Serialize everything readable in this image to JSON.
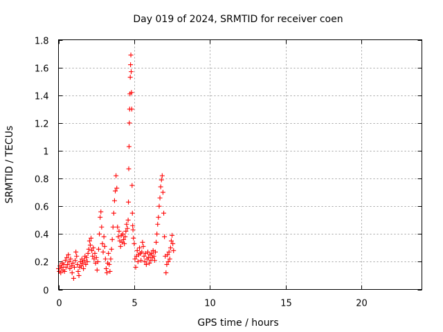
{
  "chart_data": {
    "type": "scatter",
    "title": "Day 019 of 2024, SRMTID for receiver coen",
    "xlabel": "GPS time / hours",
    "ylabel": "SRMTID / TECUs",
    "xlim": [
      0,
      24
    ],
    "ylim": [
      0,
      1.8
    ],
    "xticks": [
      0,
      5,
      10,
      15,
      20
    ],
    "xtick_labels": [
      "0",
      "5",
      "10",
      "15",
      "20"
    ],
    "yticks": [
      0,
      0.2,
      0.4,
      0.6,
      0.8,
      1,
      1.2,
      1.4,
      1.6,
      1.8
    ],
    "ytick_labels": [
      "0",
      "0.2",
      "0.4",
      "0.6",
      "0.8",
      "1",
      "1.2",
      "1.4",
      "1.6",
      "1.8"
    ],
    "grid": true,
    "marker": "+",
    "series_color": "#ff0000",
    "series": [
      {
        "name": "SRMTID",
        "points": [
          [
            0.0,
            0.15
          ],
          [
            0.05,
            0.13
          ],
          [
            0.1,
            0.17
          ],
          [
            0.15,
            0.12
          ],
          [
            0.2,
            0.16
          ],
          [
            0.25,
            0.19
          ],
          [
            0.3,
            0.14
          ],
          [
            0.35,
            0.18
          ],
          [
            0.4,
            0.13
          ],
          [
            0.45,
            0.21
          ],
          [
            0.5,
            0.16
          ],
          [
            0.55,
            0.23
          ],
          [
            0.6,
            0.18
          ],
          [
            0.65,
            0.25
          ],
          [
            0.7,
            0.2
          ],
          [
            0.75,
            0.15
          ],
          [
            0.8,
            0.22
          ],
          [
            0.85,
            0.17
          ],
          [
            0.9,
            0.12
          ],
          [
            0.95,
            0.19
          ],
          [
            1.0,
            0.08
          ],
          [
            1.05,
            0.16
          ],
          [
            1.1,
            0.21
          ],
          [
            1.15,
            0.27
          ],
          [
            1.2,
            0.24
          ],
          [
            1.25,
            0.18
          ],
          [
            1.3,
            0.13
          ],
          [
            1.35,
            0.1
          ],
          [
            1.4,
            0.16
          ],
          [
            1.45,
            0.2
          ],
          [
            1.5,
            0.17
          ],
          [
            1.55,
            0.22
          ],
          [
            1.6,
            0.19
          ],
          [
            1.65,
            0.15
          ],
          [
            1.7,
            0.21
          ],
          [
            1.75,
            0.24
          ],
          [
            1.8,
            0.18
          ],
          [
            1.85,
            0.23
          ],
          [
            1.9,
            0.2
          ],
          [
            1.95,
            0.26
          ],
          [
            2.0,
            0.29
          ],
          [
            2.05,
            0.35
          ],
          [
            2.1,
            0.32
          ],
          [
            2.15,
            0.37
          ],
          [
            2.2,
            0.28
          ],
          [
            2.25,
            0.24
          ],
          [
            2.3,
            0.3
          ],
          [
            2.35,
            0.22
          ],
          [
            2.4,
            0.26
          ],
          [
            2.45,
            0.19
          ],
          [
            2.5,
            0.23
          ],
          [
            2.55,
            0.14
          ],
          [
            2.6,
            0.2
          ],
          [
            2.65,
            0.29
          ],
          [
            2.7,
            0.4
          ],
          [
            2.75,
            0.52
          ],
          [
            2.8,
            0.56
          ],
          [
            2.85,
            0.45
          ],
          [
            2.9,
            0.33
          ],
          [
            2.95,
            0.27
          ],
          [
            3.0,
            0.38
          ],
          [
            3.05,
            0.31
          ],
          [
            3.1,
            0.22
          ],
          [
            3.15,
            0.15
          ],
          [
            3.2,
            0.12
          ],
          [
            3.25,
            0.19
          ],
          [
            3.3,
            0.26
          ],
          [
            3.35,
            0.18
          ],
          [
            3.4,
            0.13
          ],
          [
            3.45,
            0.22
          ],
          [
            3.5,
            0.29
          ],
          [
            3.55,
            0.36
          ],
          [
            3.6,
            0.45
          ],
          [
            3.65,
            0.55
          ],
          [
            3.7,
            0.64
          ],
          [
            3.75,
            0.71
          ],
          [
            3.8,
            0.82
          ],
          [
            3.85,
            0.73
          ],
          [
            3.9,
            0.45
          ],
          [
            3.95,
            0.38
          ],
          [
            4.0,
            0.42
          ],
          [
            4.05,
            0.35
          ],
          [
            4.1,
            0.31
          ],
          [
            4.15,
            0.39
          ],
          [
            4.2,
            0.34
          ],
          [
            4.25,
            0.4
          ],
          [
            4.3,
            0.36
          ],
          [
            4.35,
            0.33
          ],
          [
            4.4,
            0.38
          ],
          [
            4.45,
            0.42
          ],
          [
            4.5,
            0.47
          ],
          [
            4.55,
            0.44
          ],
          [
            4.6,
            0.5
          ],
          [
            4.62,
            0.63
          ],
          [
            4.64,
            0.87
          ],
          [
            4.66,
            1.03
          ],
          [
            4.68,
            1.2
          ],
          [
            4.7,
            1.3
          ],
          [
            4.72,
            1.41
          ],
          [
            4.74,
            1.53
          ],
          [
            4.76,
            1.62
          ],
          [
            4.78,
            1.69
          ],
          [
            4.8,
            1.57
          ],
          [
            4.82,
            1.42
          ],
          [
            4.84,
            1.3
          ],
          [
            4.86,
            0.75
          ],
          [
            4.88,
            0.55
          ],
          [
            4.9,
            0.46
          ],
          [
            4.92,
            0.43
          ],
          [
            4.95,
            0.37
          ],
          [
            5.0,
            0.33
          ],
          [
            5.05,
            0.22
          ],
          [
            5.1,
            0.16
          ],
          [
            5.15,
            0.24
          ],
          [
            5.2,
            0.28
          ],
          [
            5.25,
            0.2
          ],
          [
            5.3,
            0.25
          ],
          [
            5.35,
            0.3
          ],
          [
            5.4,
            0.26
          ],
          [
            5.45,
            0.21
          ],
          [
            5.5,
            0.27
          ],
          [
            5.55,
            0.34
          ],
          [
            5.6,
            0.31
          ],
          [
            5.65,
            0.24
          ],
          [
            5.7,
            0.2
          ],
          [
            5.75,
            0.26
          ],
          [
            5.8,
            0.18
          ],
          [
            5.85,
            0.22
          ],
          [
            5.9,
            0.27
          ],
          [
            5.95,
            0.23
          ],
          [
            6.0,
            0.19
          ],
          [
            6.05,
            0.25
          ],
          [
            6.1,
            0.21
          ],
          [
            6.15,
            0.26
          ],
          [
            6.2,
            0.23
          ],
          [
            6.25,
            0.28
          ],
          [
            6.3,
            0.24
          ],
          [
            6.35,
            0.21
          ],
          [
            6.4,
            0.27
          ],
          [
            6.45,
            0.34
          ],
          [
            6.5,
            0.4
          ],
          [
            6.55,
            0.47
          ],
          [
            6.6,
            0.52
          ],
          [
            6.65,
            0.6
          ],
          [
            6.7,
            0.66
          ],
          [
            6.75,
            0.74
          ],
          [
            6.8,
            0.79
          ],
          [
            6.85,
            0.82
          ],
          [
            6.9,
            0.7
          ],
          [
            6.95,
            0.55
          ],
          [
            7.0,
            0.38
          ],
          [
            7.05,
            0.24
          ],
          [
            7.1,
            0.12
          ],
          [
            7.15,
            0.18
          ],
          [
            7.2,
            0.25
          ],
          [
            7.25,
            0.2
          ],
          [
            7.3,
            0.27
          ],
          [
            7.35,
            0.22
          ],
          [
            7.4,
            0.3
          ],
          [
            7.45,
            0.35
          ],
          [
            7.5,
            0.39
          ],
          [
            7.55,
            0.33
          ],
          [
            7.6,
            0.28
          ]
        ]
      }
    ]
  }
}
